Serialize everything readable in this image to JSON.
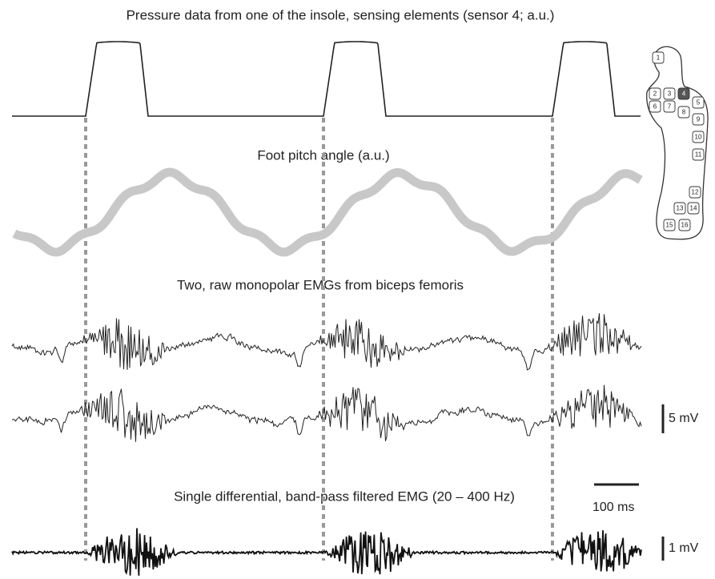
{
  "titles": [
    "Pressure data from one of the insole, sensing elements (sensor 4; a.u.)",
    "Foot pitch angle (a.u.)",
    "Two, raw monopolar EMGs from biceps femoris",
    "Single differential, band-pass filtered EMG (20 – 400 Hz)"
  ],
  "scale_bars": {
    "raw": "5 mV",
    "time": "100 ms",
    "filtered": "1 mV"
  },
  "insole_sensors": [
    "1",
    "2",
    "3",
    "4",
    "5",
    "6",
    "7",
    "8",
    "9",
    "10",
    "11",
    "12",
    "13",
    "14",
    "15",
    "16"
  ]
}
